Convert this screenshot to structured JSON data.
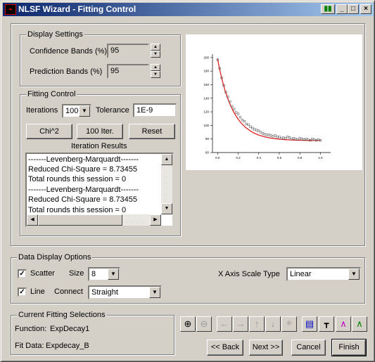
{
  "title": "NLSF Wizard - Fitting Control",
  "display_settings": {
    "label": "Display Settings",
    "confidence_label": "Confidence Bands (%)",
    "confidence_value": "95",
    "prediction_label": "Prediction Bands (%)",
    "prediction_value": "95"
  },
  "fitting_control": {
    "label": "Fitting Control",
    "iterations_label": "Iterations",
    "iterations_value": "100",
    "tolerance_label": "Tolerance",
    "tolerance_value": "1E-9",
    "chi2_button": "Chi^2",
    "iter_button": "100 Iter.",
    "reset_button": "Reset",
    "results_label": "Iteration Results",
    "results": [
      "-------Levenberg-Marquardt-------",
      "Reduced Chi-Square = 8.73455",
      "Total rounds this session = 0",
      "-------Levenberg-Marquardt-------",
      "Reduced Chi-Square = 8.73455",
      "Total rounds this session = 0"
    ]
  },
  "data_display": {
    "label": "Data Display Options",
    "scatter_label": "Scatter",
    "scatter_checked": true,
    "size_label": "Size",
    "size_value": "8",
    "line_label": "Line",
    "line_checked": true,
    "connect_label": "Connect",
    "connect_value": "Straight",
    "xaxis_label": "X Axis Scale Type",
    "xaxis_value": "Linear"
  },
  "current": {
    "label": "Current Fitting Selections",
    "function_label": "Function:",
    "function_value": "ExpDecay1",
    "fitdata_label": "Fit Data:",
    "fitdata_value": "Expdecay_B"
  },
  "nav": {
    "back": "<< Back",
    "next": "Next >>",
    "cancel": "Cancel",
    "finish": "Finish"
  },
  "toolbar_icons": [
    "zoom-in-icon",
    "zoom-out-icon",
    "arrow-left-icon",
    "arrow-right-icon",
    "arrow-up-icon",
    "arrow-down-icon",
    "rescale-icon",
    "window-icon",
    "sheet-icon",
    "line-graph-icon",
    "fit-graph-icon"
  ],
  "chart_data": {
    "type": "scatter",
    "x_ticks": [
      "0.0",
      "0.2",
      "0.4",
      "0.6",
      "0.8",
      "1.0"
    ],
    "y_ticks": [
      "60",
      "80",
      "100",
      "120",
      "140",
      "160",
      "180",
      "200"
    ],
    "xlim": [
      -0.05,
      1.1
    ],
    "ylim": [
      60,
      205
    ],
    "fit_color": "#e02020",
    "point_color": "#606060",
    "fit": {
      "model": "y0 + A1*exp(-x/t1)",
      "y0": 77.5,
      "A1": 120,
      "t1": 0.15
    },
    "x": [
      0.0,
      0.02,
      0.04,
      0.06,
      0.08,
      0.1,
      0.12,
      0.14,
      0.16,
      0.18,
      0.2,
      0.22,
      0.24,
      0.26,
      0.28,
      0.3,
      0.32,
      0.34,
      0.36,
      0.38,
      0.4,
      0.42,
      0.44,
      0.46,
      0.48,
      0.5,
      0.52,
      0.54,
      0.56,
      0.58,
      0.6,
      0.62,
      0.64,
      0.66,
      0.68,
      0.7,
      0.72,
      0.74,
      0.76,
      0.78,
      0.8,
      0.82,
      0.84,
      0.86,
      0.88,
      0.9,
      0.92,
      0.94,
      0.96,
      0.98,
      1.0
    ],
    "y": [
      197,
      184,
      170,
      159,
      149,
      142,
      135,
      128,
      124,
      119,
      117,
      112,
      108,
      106,
      102,
      101,
      98,
      96,
      94,
      93,
      92,
      90,
      88,
      87,
      86,
      86,
      85,
      84,
      85,
      83,
      83,
      81,
      82,
      81,
      83,
      82,
      80,
      81,
      80,
      79,
      81,
      80,
      79,
      80,
      79,
      78,
      80,
      79,
      78,
      79,
      78
    ]
  }
}
